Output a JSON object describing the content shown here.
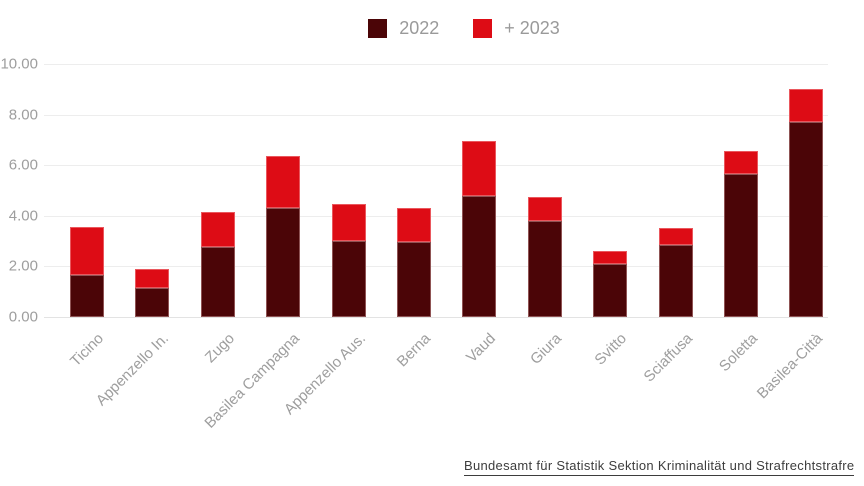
{
  "legend": {
    "items": [
      {
        "label": "2022",
        "color": "#4b0507"
      },
      {
        "label": "+ 2023",
        "color": "#dd0c15"
      }
    ]
  },
  "y_axis": {
    "tick_labels": [
      "10.00",
      "8.00",
      "6.00",
      "4.00",
      "2.00",
      "0.00"
    ]
  },
  "footer": {
    "source_link": "Bundesamt für Statistik Sektion Kriminalität und Strafrechtstrafre"
  },
  "chart_data": {
    "type": "bar",
    "stacked": true,
    "title": "",
    "xlabel": "",
    "ylabel": "",
    "categories": [
      "Ticino",
      "Appenzello In.",
      "Zugo",
      "Basilea Campagna",
      "Appenzello Aus.",
      "Berna",
      "Vaud",
      "Giura",
      "Svitto",
      "Sciaffusa",
      "Soletta",
      "Basilea-Città"
    ],
    "series": [
      {
        "name": "2022",
        "color": "#4b0507",
        "values": [
          1.65,
          1.15,
          2.75,
          4.3,
          3.0,
          2.95,
          4.8,
          3.8,
          2.1,
          2.85,
          5.65,
          7.7
        ]
      },
      {
        "name": "+ 2023",
        "color": "#dd0c15",
        "values": [
          1.9,
          0.75,
          1.4,
          2.05,
          1.45,
          1.35,
          2.15,
          0.95,
          0.5,
          0.65,
          0.9,
          1.3
        ]
      }
    ],
    "totals": [
      3.55,
      1.9,
      4.15,
      6.35,
      4.45,
      4.3,
      6.95,
      4.75,
      2.6,
      3.5,
      6.55,
      9.0
    ],
    "ylim": [
      0,
      10
    ],
    "y_ticks": [
      0,
      2,
      4,
      6,
      8,
      10
    ],
    "grid": "horizontal",
    "legend_position": "top-center"
  }
}
